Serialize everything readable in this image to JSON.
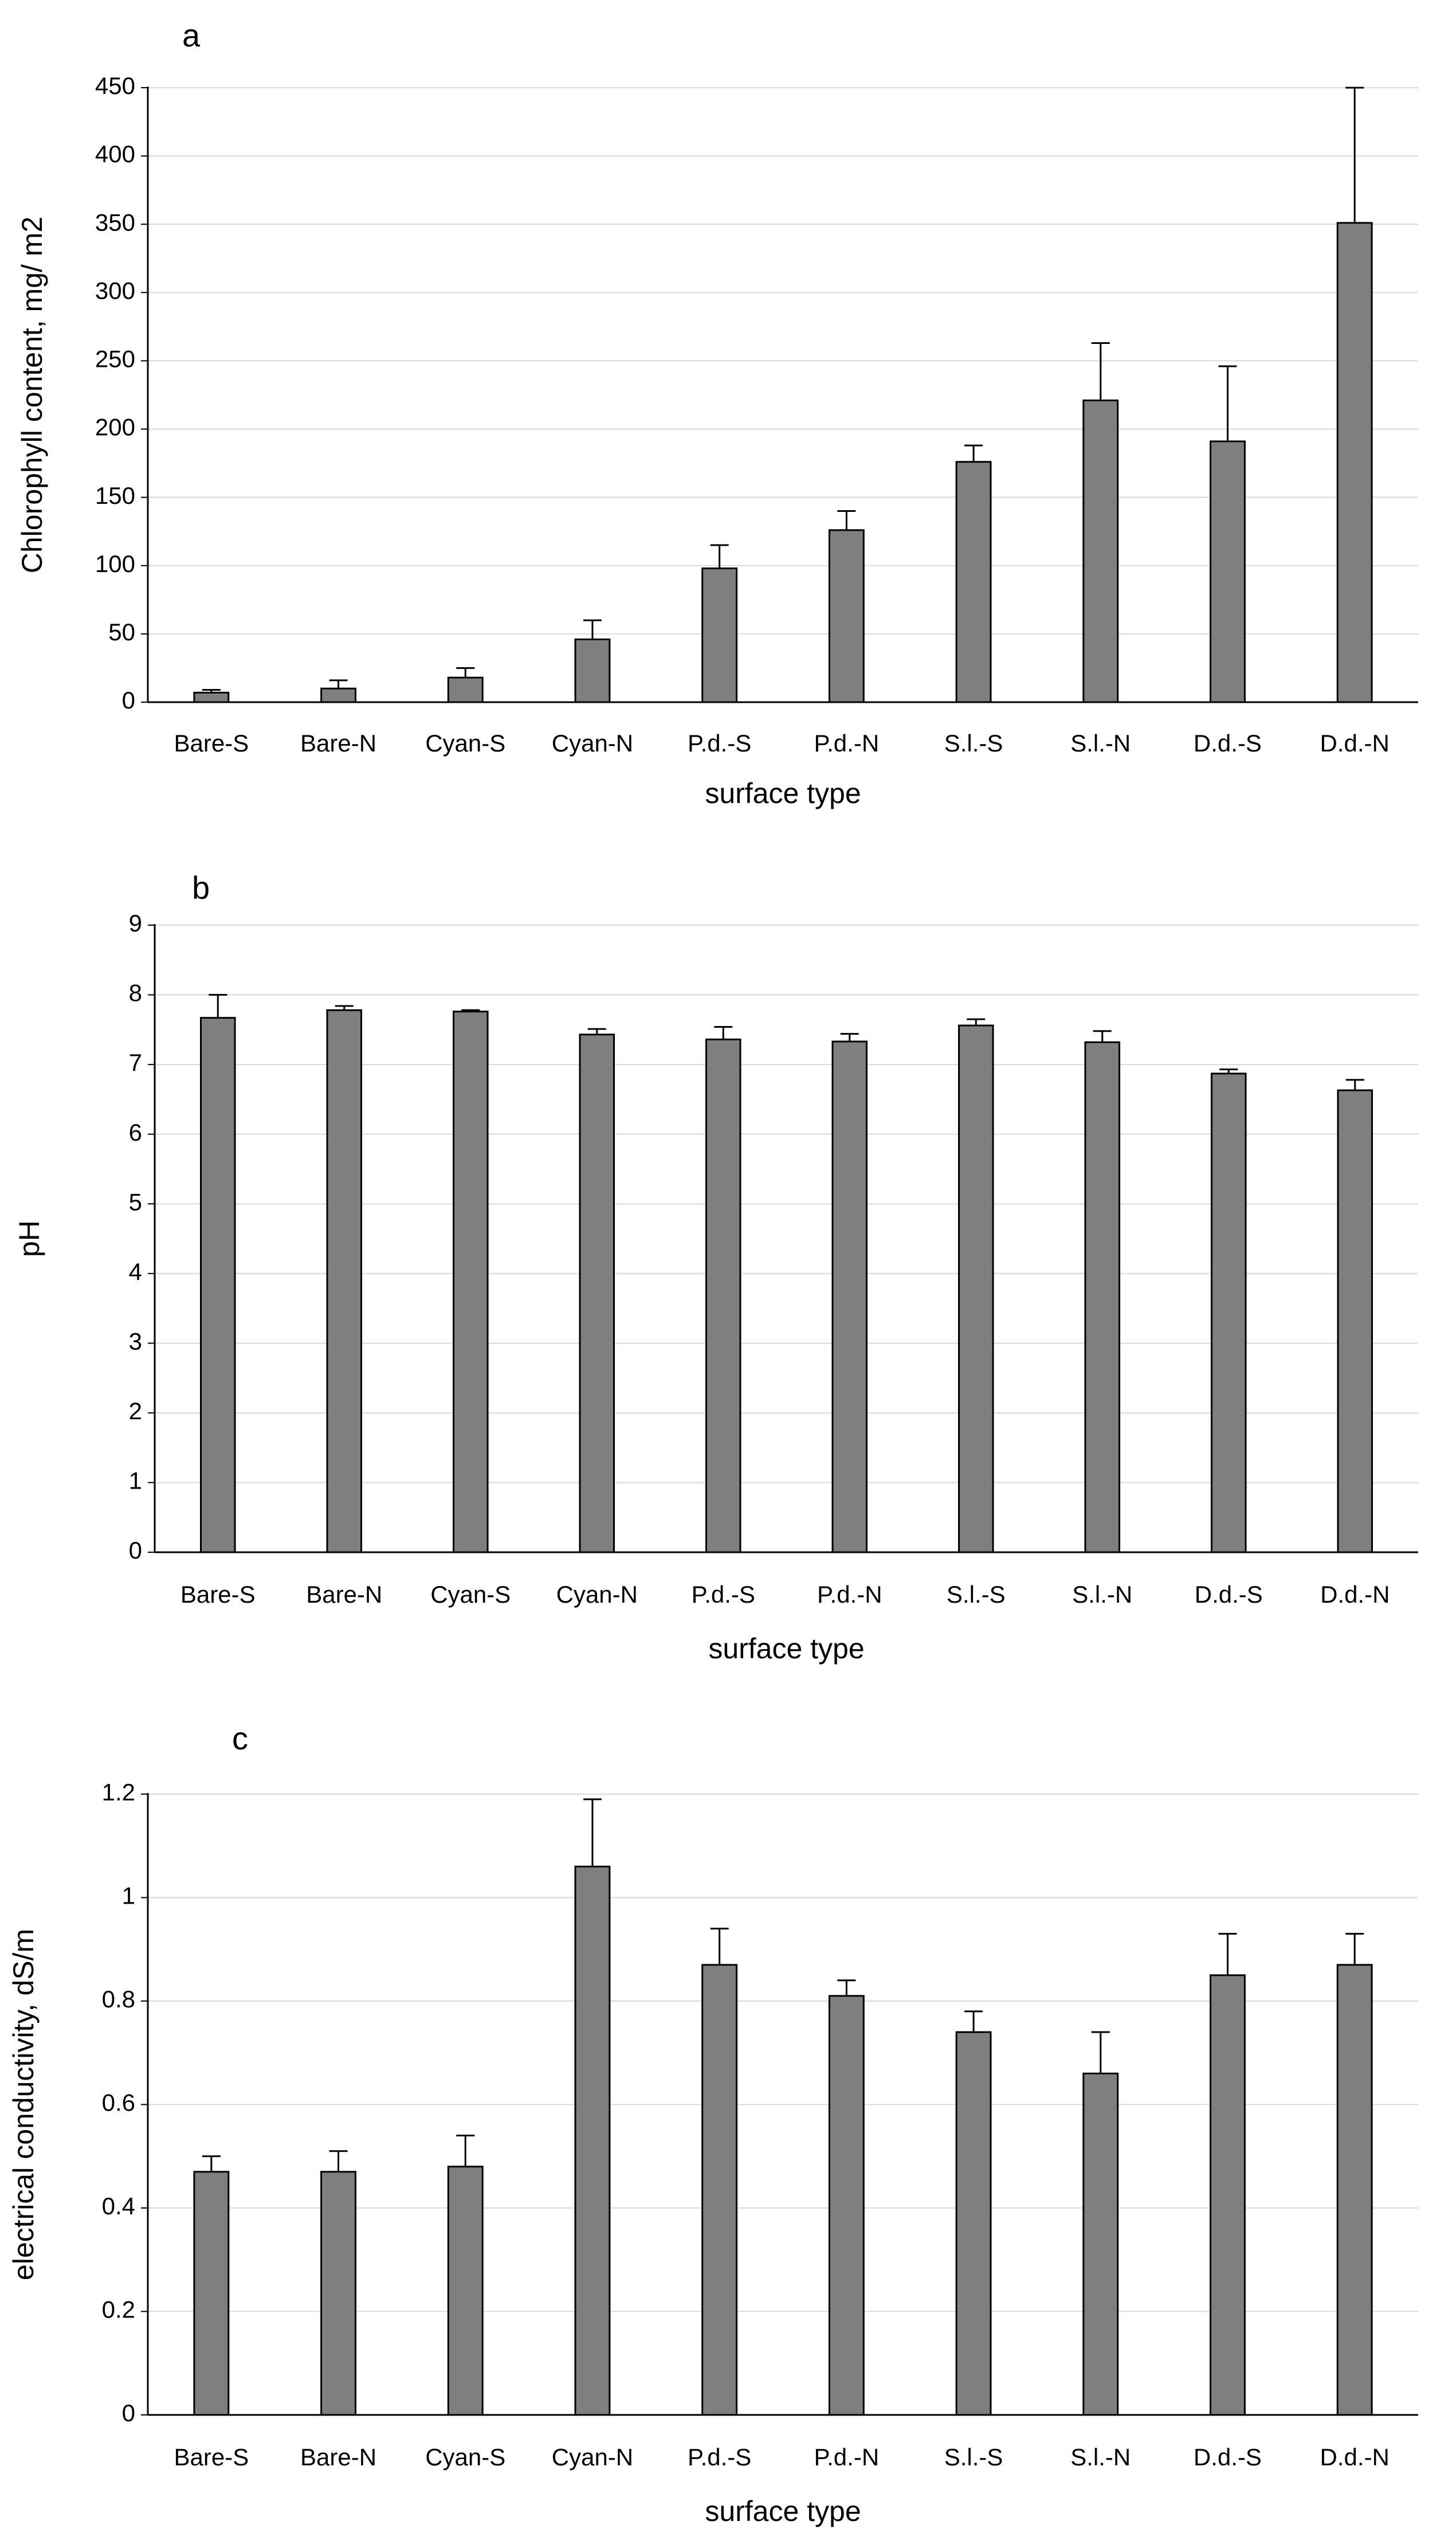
{
  "chart_data": [
    {
      "type": "bar",
      "panel_label": "a",
      "categories": [
        "Bare-S",
        "Bare-N",
        "Cyan-S",
        "Cyan-N",
        "P.d.-S",
        "P.d.-N",
        "S.l.-S",
        "S.l.-N",
        "D.d.-S",
        "D.d.-N"
      ],
      "values": [
        7,
        10,
        18,
        46,
        98,
        126,
        176,
        221,
        191,
        351
      ],
      "errors": [
        2,
        6,
        7,
        14,
        17,
        14,
        12,
        42,
        55,
        99
      ],
      "xlabel": "surface type",
      "ylabel": "Chlorophyll content, mg/ m2",
      "ylim": [
        0,
        450
      ],
      "yticks": [
        "0",
        "50",
        "100",
        "150",
        "200",
        "250",
        "300",
        "350",
        "400",
        "450"
      ],
      "ytick_values": [
        0,
        50,
        100,
        150,
        200,
        250,
        300,
        350,
        400,
        450
      ],
      "grid": true,
      "bar_color": "#7f7f7f"
    },
    {
      "type": "bar",
      "panel_label": "b",
      "categories": [
        "Bare-S",
        "Bare-N",
        "Cyan-S",
        "Cyan-N",
        "P.d.-S",
        "P.d.-N",
        "S.l.-S",
        "S.l.-N",
        "D.d.-S",
        "D.d.-N"
      ],
      "values": [
        7.67,
        7.78,
        7.76,
        7.43,
        7.36,
        7.33,
        7.56,
        7.32,
        6.87,
        6.63
      ],
      "errors": [
        0.33,
        0.06,
        0.02,
        0.08,
        0.18,
        0.11,
        0.09,
        0.16,
        0.06,
        0.15
      ],
      "xlabel": "surface type",
      "ylabel": "pH",
      "ylim": [
        0,
        9
      ],
      "yticks": [
        "0",
        "1",
        "2",
        "3",
        "4",
        "5",
        "6",
        "7",
        "8",
        "9"
      ],
      "ytick_values": [
        0,
        1,
        2,
        3,
        4,
        5,
        6,
        7,
        8,
        9
      ],
      "grid": true,
      "bar_color": "#7f7f7f"
    },
    {
      "type": "bar",
      "panel_label": "c",
      "categories": [
        "Bare-S",
        "Bare-N",
        "Cyan-S",
        "Cyan-N",
        "P.d.-S",
        "P.d.-N",
        "S.l.-S",
        "S.l.-N",
        "D.d.-S",
        "D.d.-N"
      ],
      "values": [
        0.47,
        0.47,
        0.48,
        1.06,
        0.87,
        0.81,
        0.74,
        0.66,
        0.85,
        0.87
      ],
      "errors": [
        0.03,
        0.04,
        0.06,
        0.13,
        0.07,
        0.03,
        0.04,
        0.08,
        0.08,
        0.06
      ],
      "xlabel": "surface type",
      "ylabel": "electrical conductivity, dS/m",
      "ylim": [
        0,
        1.2
      ],
      "yticks": [
        "0",
        "0.2",
        "0.4",
        "0.6",
        "0.8",
        "1",
        "1.2"
      ],
      "ytick_values": [
        0,
        0.2,
        0.4,
        0.6,
        0.8,
        1,
        1.2
      ],
      "grid": true,
      "bar_color": "#7f7f7f"
    }
  ]
}
